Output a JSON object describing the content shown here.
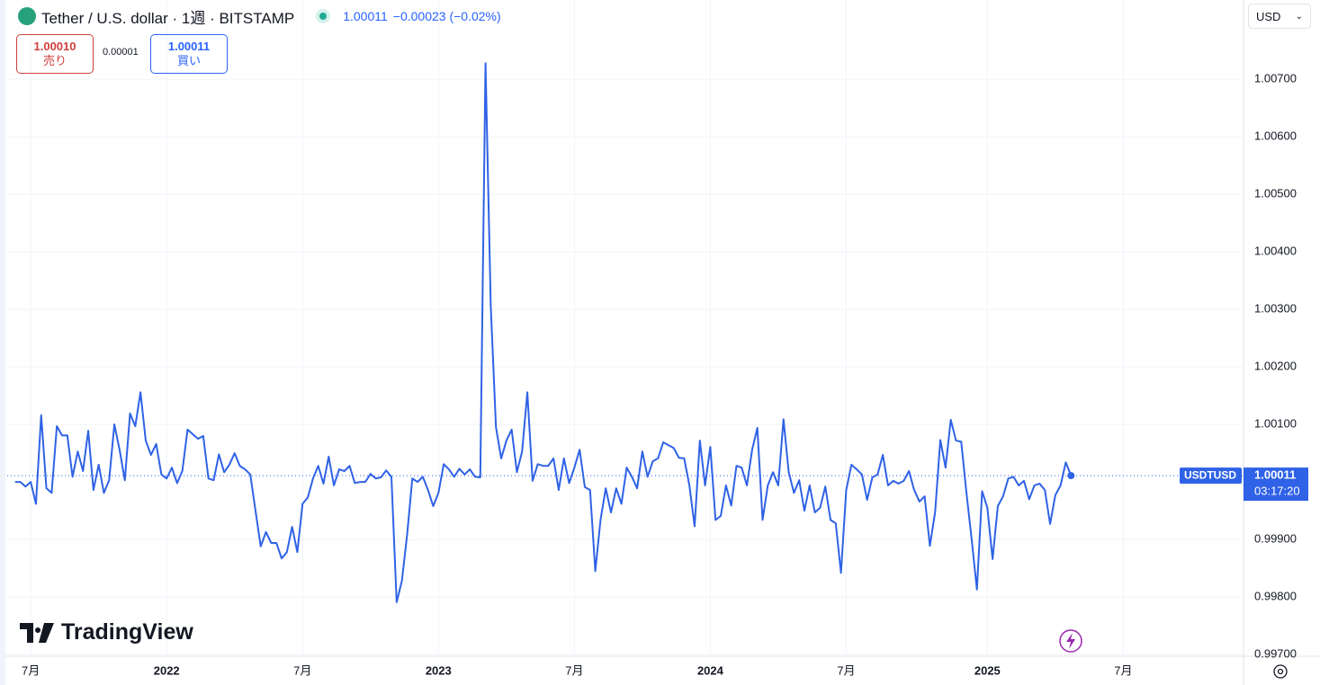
{
  "header": {
    "title": "Tether / U.S. dollar · 1週 · BITSTAMP",
    "price": "1.00011",
    "change": "−0.00023 (−0.02%)",
    "sell": {
      "price": "1.00010",
      "label": "売り"
    },
    "spread": "0.00001",
    "buy": {
      "price": "1.00011",
      "label": "買い"
    },
    "currency": "USD",
    "watermark": "TradingView"
  },
  "chart_data": {
    "type": "line",
    "series": [
      {
        "name": "USDTUSD",
        "color": "#2f62e6",
        "values": [
          1.0,
          1.0,
          0.99992,
          1.0,
          0.99962,
          1.00116,
          0.99989,
          0.99981,
          1.00097,
          1.00081,
          1.00081,
          1.00009,
          1.00053,
          1.00019,
          1.00089,
          0.99986,
          1.0003,
          0.99981,
          1.00003,
          1.001,
          1.00056,
          1.00003,
          1.00119,
          1.00097,
          1.00156,
          1.00072,
          1.00047,
          1.00066,
          1.00013,
          1.00006,
          1.00025,
          0.99998,
          1.00019,
          1.00091,
          1.00083,
          1.00075,
          1.0008,
          1.00006,
          1.00003,
          1.00048,
          1.00017,
          1.0003,
          1.0005,
          1.00028,
          1.00022,
          1.00013,
          0.9995,
          0.99888,
          0.99913,
          0.99894,
          0.99894,
          0.99867,
          0.99878,
          0.99922,
          0.99878,
          0.99962,
          0.99973,
          1.00006,
          1.00028,
          0.99997,
          1.00044,
          0.99994,
          1.00022,
          1.00019,
          1.00028,
          0.99998,
          1.0,
          1.0,
          1.00014,
          1.00006,
          1.00008,
          1.0002,
          1.00009,
          0.99791,
          0.99828,
          0.99908,
          1.00006,
          1.0,
          1.00009,
          0.99986,
          0.99958,
          0.99981,
          1.00031,
          1.00022,
          1.00009,
          1.00023,
          1.00013,
          1.00022,
          1.00009,
          1.00008,
          1.00728,
          1.00306,
          1.00095,
          1.00041,
          1.00072,
          1.00091,
          1.00017,
          1.00053,
          1.00156,
          1.00002,
          1.00031,
          1.00028,
          1.00028,
          1.00041,
          0.99986,
          1.00041,
          0.99998,
          1.00025,
          1.00056,
          0.99991,
          0.99986,
          0.99845,
          0.99934,
          0.99989,
          0.99947,
          0.99989,
          0.99962,
          1.00025,
          1.00009,
          0.99989,
          1.00053,
          1.00009,
          1.00036,
          1.00041,
          1.00069,
          1.00064,
          1.00059,
          1.00042,
          1.00041,
          0.99994,
          0.99923,
          1.00072,
          0.99994,
          1.00061,
          0.99934,
          0.99941,
          0.99994,
          0.99959,
          1.00028,
          1.00025,
          0.99994,
          1.00056,
          1.00094,
          0.99934,
          0.99994,
          1.00017,
          0.99994,
          1.00109,
          1.00017,
          0.99981,
          1.00003,
          0.9995,
          0.99994,
          0.99947,
          0.99955,
          0.99992,
          0.99934,
          0.99928,
          0.99842,
          0.99986,
          1.0003,
          1.00022,
          1.00013,
          0.99969,
          1.00008,
          1.00013,
          1.00047,
          0.99994,
          1.00002,
          0.99997,
          1.00002,
          1.00019,
          0.99986,
          0.99966,
          0.99975,
          0.99889,
          0.99947,
          1.00073,
          1.00025,
          1.00108,
          1.00072,
          1.0007,
          0.99981,
          0.999,
          0.99813,
          0.99984,
          0.99955,
          0.99866,
          0.99958,
          0.99975,
          1.00006,
          1.00009,
          0.99994,
          1.00002,
          0.9997,
          0.99994,
          0.99997,
          0.99986,
          0.99927,
          0.99977,
          0.99994,
          1.00034,
          1.00011
        ]
      }
    ],
    "last_price": "1.00011",
    "countdown": "03:17:20",
    "xlim": [
      -1.5,
      235
    ],
    "xticks": [
      {
        "value": 3,
        "label": "7月"
      },
      {
        "value": 29,
        "label": "2022"
      },
      {
        "value": 55,
        "label": "7月"
      },
      {
        "value": 81,
        "label": "2023"
      },
      {
        "value": 107,
        "label": "7月"
      },
      {
        "value": 133,
        "label": "2024"
      },
      {
        "value": 159,
        "label": "7月"
      },
      {
        "value": 186,
        "label": "2025"
      },
      {
        "value": 212,
        "label": "7月"
      }
    ],
    "ylim": [
      0.99697,
      1.00838
    ],
    "yticks": [
      {
        "value": 0.997,
        "label": "0.99700"
      },
      {
        "value": 0.998,
        "label": "0.99800"
      },
      {
        "value": 0.999,
        "label": "0.99900"
      },
      {
        "value": 1.001,
        "label": "1.00100"
      },
      {
        "value": 1.002,
        "label": "1.00200"
      },
      {
        "value": 1.003,
        "label": "1.00300"
      },
      {
        "value": 1.004,
        "label": "1.00400"
      },
      {
        "value": 1.005,
        "label": "1.00500"
      },
      {
        "value": 1.006,
        "label": "1.00600"
      },
      {
        "value": 1.007,
        "label": "1.00700"
      }
    ],
    "grid": true
  }
}
